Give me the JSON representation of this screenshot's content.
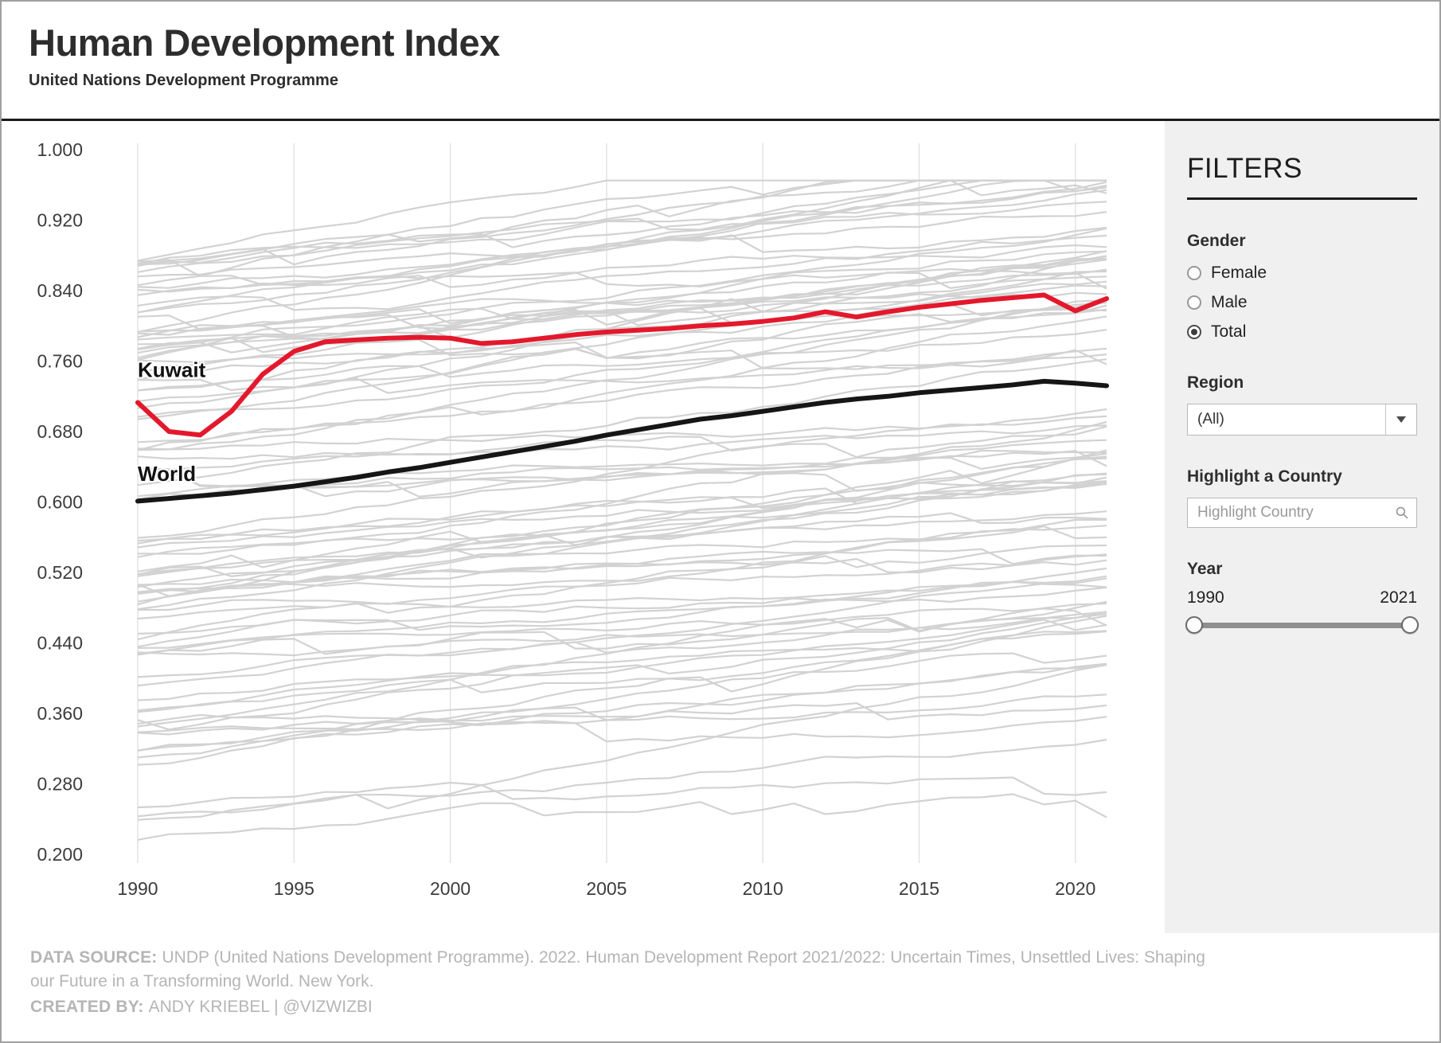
{
  "header": {
    "title": "Human Development Index",
    "subtitle": "United Nations Development Programme"
  },
  "filters": {
    "heading": "FILTERS",
    "gender": {
      "label": "Gender",
      "options": [
        {
          "label": "Female",
          "selected": false
        },
        {
          "label": "Male",
          "selected": false
        },
        {
          "label": "Total",
          "selected": true
        }
      ]
    },
    "region": {
      "label": "Region",
      "value": "(All)"
    },
    "highlight": {
      "label": "Highlight a Country",
      "placeholder": "Highlight Country"
    },
    "year": {
      "label": "Year",
      "min": "1990",
      "max": "2021"
    }
  },
  "footer": {
    "source_label": "DATA SOURCE:",
    "source_text": "UNDP (United Nations Development Programme). 2022. Human Development Report 2021/2022: Uncertain Times, Unsettled Lives: Shaping our Future in a Transforming World. New York.",
    "credit_label": "CREATED BY:",
    "credit_text": "ANDY KRIEBEL | @VIZWIZBI"
  },
  "chart_data": {
    "type": "line",
    "title": "Human Development Index",
    "xlabel": "",
    "ylabel": "",
    "xlim": [
      1990,
      2021
    ],
    "ylim": [
      0.2,
      1.0
    ],
    "xticks": [
      1990,
      1995,
      2000,
      2005,
      2010,
      2015,
      2020
    ],
    "yticks": [
      1.0,
      0.92,
      0.84,
      0.76,
      0.68,
      0.6,
      0.52,
      0.44,
      0.36,
      0.28,
      0.2
    ],
    "grid": "vertical",
    "legend_position": "inline-labels",
    "x": [
      1990,
      1991,
      1992,
      1993,
      1994,
      1995,
      1996,
      1997,
      1998,
      1999,
      2000,
      2001,
      2002,
      2003,
      2004,
      2005,
      2006,
      2007,
      2008,
      2009,
      2010,
      2011,
      2012,
      2013,
      2014,
      2015,
      2016,
      2017,
      2018,
      2019,
      2020,
      2021
    ],
    "series": [
      {
        "name": "Kuwait",
        "color": "#e4182c",
        "label_at": {
          "x": 1990,
          "y": 0.742
        },
        "values": [
          0.713,
          0.68,
          0.676,
          0.703,
          0.745,
          0.771,
          0.782,
          0.784,
          0.786,
          0.787,
          0.786,
          0.78,
          0.782,
          0.786,
          0.79,
          0.793,
          0.795,
          0.797,
          0.8,
          0.802,
          0.805,
          0.809,
          0.816,
          0.81,
          0.816,
          0.821,
          0.825,
          0.829,
          0.832,
          0.835,
          0.817,
          0.831
        ]
      },
      {
        "name": "World",
        "color": "#161616",
        "label_at": {
          "x": 1990,
          "y": 0.624
        },
        "values": [
          0.601,
          0.604,
          0.607,
          0.61,
          0.614,
          0.618,
          0.623,
          0.628,
          0.634,
          0.639,
          0.645,
          0.651,
          0.657,
          0.663,
          0.669,
          0.676,
          0.682,
          0.688,
          0.694,
          0.698,
          0.703,
          0.708,
          0.713,
          0.717,
          0.72,
          0.724,
          0.727,
          0.73,
          0.733,
          0.737,
          0.735,
          0.732
        ]
      }
    ],
    "background_countries": {
      "note": "unlabeled gray HDI trajectories for all individual countries, 1990-2021, values roughly 0.2-0.96 rising over time",
      "count": 95,
      "seed": 13,
      "color": "#d2d2d2"
    }
  }
}
